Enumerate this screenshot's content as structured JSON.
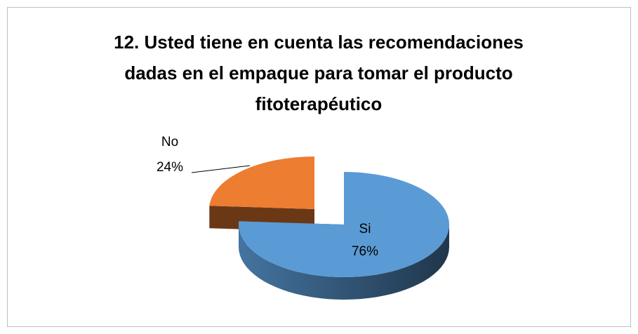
{
  "chart_data": {
    "type": "pie3d",
    "title": "12. Usted tiene en cuenta las recomendaciones dadas en el empaque para tomar el producto fitoterapéutico",
    "categories": [
      "Si",
      "No"
    ],
    "values": [
      76,
      24
    ],
    "value_labels": [
      "76%",
      "24%"
    ],
    "colors": [
      "#5b9bd5",
      "#ed7d31"
    ]
  }
}
